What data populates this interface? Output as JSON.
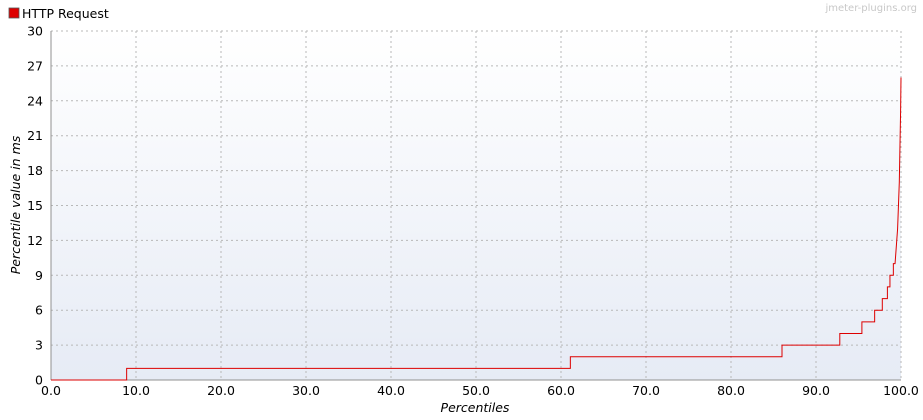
{
  "legend": {
    "label": "HTTP Request",
    "color": "#dd0000"
  },
  "watermark": "jmeter-plugins.org",
  "chart_data": {
    "type": "line",
    "title": "",
    "xlabel": "Percentiles",
    "ylabel": "Percentile value in ms",
    "xlim": [
      0,
      100
    ],
    "ylim": [
      0,
      30
    ],
    "x_ticks": [
      "0.0",
      "10.0",
      "20.0",
      "30.0",
      "40.0",
      "50.0",
      "60.0",
      "70.0",
      "80.0",
      "90.0",
      "100.0"
    ],
    "y_ticks": [
      "0",
      "3",
      "6",
      "9",
      "12",
      "15",
      "18",
      "21",
      "24",
      "27",
      "30"
    ],
    "grid": true,
    "legend_position": "top-left",
    "series": [
      {
        "name": "HTTP Request",
        "color": "#dd0000",
        "step": true,
        "points": [
          [
            0.0,
            0
          ],
          [
            8.9,
            0
          ],
          [
            8.9,
            1
          ],
          [
            61.1,
            1
          ],
          [
            61.1,
            2
          ],
          [
            86.0,
            2
          ],
          [
            86.0,
            3
          ],
          [
            92.8,
            3
          ],
          [
            92.8,
            4
          ],
          [
            95.4,
            4
          ],
          [
            95.4,
            5
          ],
          [
            96.9,
            5
          ],
          [
            96.9,
            6
          ],
          [
            97.8,
            6
          ],
          [
            97.8,
            7
          ],
          [
            98.4,
            7
          ],
          [
            98.4,
            8
          ],
          [
            98.7,
            8
          ],
          [
            98.7,
            9
          ],
          [
            99.1,
            9
          ],
          [
            99.1,
            10
          ],
          [
            99.3,
            10
          ],
          [
            99.4,
            11
          ],
          [
            99.5,
            12
          ],
          [
            99.6,
            13
          ],
          [
            99.65,
            14
          ],
          [
            99.7,
            15
          ],
          [
            99.75,
            16
          ],
          [
            99.8,
            17
          ],
          [
            99.85,
            19
          ],
          [
            99.9,
            21
          ],
          [
            99.95,
            23
          ],
          [
            100.0,
            26
          ]
        ]
      }
    ]
  }
}
